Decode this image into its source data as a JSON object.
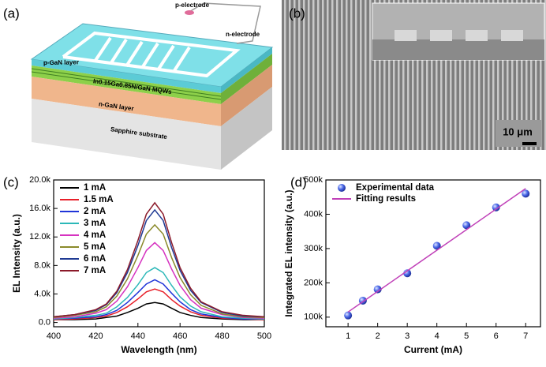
{
  "panels": [
    "(a)",
    "(b)",
    "(c)",
    "(d)"
  ],
  "diagram_a": {
    "labels": [
      "p-electrode",
      "n-electrode",
      "p-GaN layer",
      "In0.15Ga0.85N/GaN MQWs",
      "n-GaN layer",
      "Sapphire substrate"
    ]
  },
  "image_b": {
    "scale_bar": "10 μm"
  },
  "chart_data": [
    {
      "type": "line",
      "xlabel": "Wavelength (nm)",
      "ylabel": "EL Intensity (a.u.)",
      "x": [
        400,
        410,
        420,
        425,
        430,
        435,
        440,
        444,
        448,
        452,
        456,
        460,
        465,
        470,
        480,
        490,
        500
      ],
      "xlim": [
        400,
        500
      ],
      "xticks": [
        400,
        420,
        440,
        460,
        480,
        500
      ],
      "ylim": [
        -600,
        20000
      ],
      "yticks": [
        {
          "value": 0,
          "label": "0.0"
        },
        {
          "value": 4000,
          "label": "4.0k"
        },
        {
          "value": 8000,
          "label": "8.0k"
        },
        {
          "value": 12000,
          "label": "12.0k"
        },
        {
          "value": 16000,
          "label": "16.0k"
        },
        {
          "value": 20000,
          "label": "20.0k"
        }
      ],
      "legend": "upper-left",
      "series": [
        {
          "name": "1 mA",
          "color": "#000000",
          "values": [
            400,
            400,
            500,
            700,
            900,
            1400,
            2000,
            2600,
            2800,
            2600,
            2000,
            1400,
            1000,
            700,
            500,
            400,
            400
          ]
        },
        {
          "name": "1.5 mA",
          "color": "#e8202a",
          "values": [
            400,
            500,
            700,
            900,
            1400,
            2200,
            3300,
            4300,
            4700,
            4300,
            3200,
            2300,
            1500,
            1000,
            600,
            500,
            400
          ]
        },
        {
          "name": "2 mA",
          "color": "#2035d8",
          "values": [
            500,
            600,
            800,
            1100,
            1700,
            2800,
            4200,
            5400,
            6000,
            5400,
            4100,
            2900,
            1800,
            1200,
            700,
            500,
            500
          ]
        },
        {
          "name": "3 mA",
          "color": "#2cb8b8",
          "values": [
            500,
            700,
            1000,
            1300,
            2200,
            3500,
            5300,
            7000,
            7700,
            7000,
            5200,
            3600,
            2300,
            1500,
            800,
            600,
            500
          ]
        },
        {
          "name": "4 mA",
          "color": "#d633c0",
          "values": [
            600,
            800,
            1300,
            1800,
            3000,
            5000,
            7700,
            10100,
            11200,
            10100,
            7500,
            5200,
            3200,
            2000,
            1100,
            700,
            600
          ]
        },
        {
          "name": "5 mA",
          "color": "#8a8a2a",
          "values": [
            700,
            1000,
            1500,
            2200,
            3700,
            6100,
            9400,
            12400,
            13700,
            12400,
            9100,
            6300,
            3900,
            2400,
            1200,
            800,
            700
          ]
        },
        {
          "name": "6 mA",
          "color": "#1f3a93",
          "values": [
            800,
            1100,
            1700,
            2500,
            4200,
            7000,
            10800,
            14300,
            15800,
            14300,
            10500,
            7300,
            4500,
            2800,
            1400,
            900,
            800
          ]
        },
        {
          "name": "7 mA",
          "color": "#8b1a2a",
          "values": [
            800,
            1100,
            1800,
            2600,
            4400,
            7400,
            11500,
            15200,
            16800,
            15200,
            11200,
            7700,
            4800,
            2900,
            1500,
            1000,
            800
          ]
        }
      ]
    },
    {
      "type": "scatter",
      "xlabel": "Current (mA)",
      "ylabel": "Integrated EL intensity (a.u.)",
      "xlim": [
        0.25,
        7.5
      ],
      "xticks": [
        1,
        2,
        3,
        4,
        5,
        6,
        7
      ],
      "ylim": [
        72000,
        500000
      ],
      "yticks": [
        {
          "value": 100000,
          "label": "100k"
        },
        {
          "value": 200000,
          "label": "200k"
        },
        {
          "value": 300000,
          "label": "300k"
        },
        {
          "value": 400000,
          "label": "400k"
        },
        {
          "value": 500000,
          "label": "500k"
        }
      ],
      "legend": "upper-left",
      "series": [
        {
          "name": "Experimental data",
          "type": "scatter",
          "color": "#3a5be0",
          "x": [
            1,
            1.5,
            2,
            3,
            4,
            5,
            6,
            7
          ],
          "values": [
            105000,
            148000,
            181000,
            228000,
            308000,
            368000,
            420000,
            460000
          ]
        },
        {
          "name": "Fitting results",
          "type": "line",
          "color": "#c040b8",
          "x": [
            1,
            7
          ],
          "values": [
            115000,
            475000
          ]
        }
      ]
    }
  ]
}
